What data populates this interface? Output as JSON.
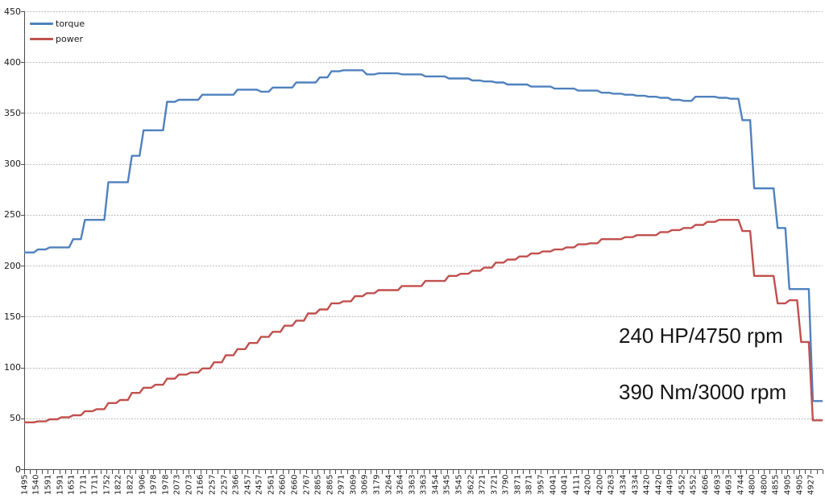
{
  "chart_data": {
    "type": "line",
    "title": "",
    "xlabel": "",
    "ylabel": "",
    "ylim": [
      0,
      450
    ],
    "ytick_step": 50,
    "grid": true,
    "legend_position": "top-left-inside",
    "step_style": true,
    "categories": [
      "1495",
      "1540",
      "1591",
      "1591",
      "1651",
      "1711",
      "1711",
      "1752",
      "1822",
      "1822",
      "1906",
      "1978",
      "1978",
      "2073",
      "2073",
      "2166",
      "2257",
      "2257",
      "2366",
      "2457",
      "2457",
      "2561",
      "2660",
      "2660",
      "2767",
      "2865",
      "2865",
      "2971",
      "3069",
      "3069",
      "3179",
      "3264",
      "3264",
      "3363",
      "3363",
      "3454",
      "3545",
      "3545",
      "3622",
      "3721",
      "3721",
      "3790",
      "3871",
      "3871",
      "3957",
      "4041",
      "4041",
      "4111",
      "4200",
      "4200",
      "4263",
      "4334",
      "4334",
      "4420",
      "4420",
      "4490",
      "4552",
      "4552",
      "4606",
      "4693",
      "4693",
      "4744",
      "4800",
      "4800",
      "4855",
      "4905",
      "4905",
      "4927"
    ],
    "series": [
      {
        "name": "torque",
        "color": "#4F81BD",
        "values": [
          213,
          216,
          218,
          218,
          226,
          245,
          245,
          282,
          282,
          308,
          333,
          333,
          361,
          363,
          363,
          368,
          368,
          368,
          373,
          373,
          371,
          375,
          375,
          380,
          380,
          385,
          391,
          392,
          392,
          388,
          389,
          389,
          388,
          388,
          386,
          386,
          384,
          384,
          382,
          381,
          380,
          378,
          378,
          376,
          376,
          374,
          374,
          372,
          372,
          370,
          369,
          368,
          367,
          366,
          365,
          363,
          362,
          366,
          366,
          365,
          364,
          343,
          276,
          276,
          237,
          177,
          177,
          67
        ]
      },
      {
        "name": "power",
        "color": "#C0504D",
        "values": [
          46,
          47,
          49,
          51,
          53,
          57,
          59,
          65,
          68,
          75,
          80,
          83,
          89,
          93,
          95,
          99,
          105,
          112,
          118,
          124,
          130,
          135,
          141,
          146,
          153,
          157,
          163,
          165,
          170,
          173,
          176,
          176,
          180,
          180,
          185,
          185,
          190,
          192,
          195,
          198,
          203,
          206,
          209,
          212,
          214,
          216,
          218,
          221,
          222,
          226,
          226,
          228,
          230,
          230,
          233,
          235,
          237,
          240,
          243,
          245,
          245,
          234,
          190,
          190,
          163,
          166,
          125,
          48
        ]
      }
    ],
    "annotations": [
      {
        "text": "240 HP/4750 rpm"
      },
      {
        "text": "390 Nm/3000 rpm"
      }
    ],
    "colors": {
      "grid": "#b3b3b3",
      "axis": "#4d4d4d",
      "text": "#1a1a1a"
    }
  }
}
